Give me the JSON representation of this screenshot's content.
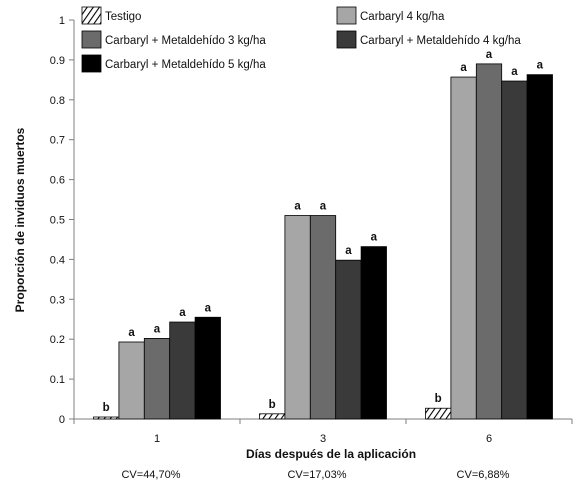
{
  "chart_data": {
    "type": "bar",
    "xlabel": "Días después de la aplicación",
    "ylabel": "Proporción de inviduos muertos",
    "ylim": [
      0,
      1
    ],
    "y_ticks": [
      "0",
      "0.1",
      "0.2",
      "0.3",
      "0.4",
      "0.5",
      "0.6",
      "0.7",
      "0.8",
      "0.9",
      "1"
    ],
    "categories": [
      "1",
      "3",
      "6"
    ],
    "cv_labels": [
      "CV=44,70%",
      "CV=17,03%",
      "CV=6,88%"
    ],
    "legend_position": "top",
    "series": [
      {
        "name": "Testigo",
        "color": "#ffffff",
        "pattern": "hatch",
        "values": [
          0.005,
          0.013,
          0.027
        ],
        "letters": [
          "b",
          "b",
          "b"
        ]
      },
      {
        "name": "Carbaryl 4 kg/ha",
        "color": "#a6a6a6",
        "values": [
          0.193,
          0.51,
          0.857
        ],
        "letters": [
          "a",
          "a",
          "a"
        ]
      },
      {
        "name": "Carbaryl + Metaldehído 3 kg/ha",
        "color": "#6b6b6b",
        "values": [
          0.202,
          0.51,
          0.89
        ],
        "letters": [
          "a",
          "a",
          "a"
        ]
      },
      {
        "name": "Carbaryl + Metaldehído 4 kg/ha",
        "color": "#3a3a3a",
        "values": [
          0.243,
          0.398,
          0.847
        ],
        "letters": [
          "a",
          "a",
          "a"
        ]
      },
      {
        "name": "Carbaryl + Metaldehído 5 kg/ha",
        "color": "#000000",
        "values": [
          0.255,
          0.432,
          0.863
        ],
        "letters": [
          "a",
          "a",
          "a"
        ]
      }
    ]
  }
}
